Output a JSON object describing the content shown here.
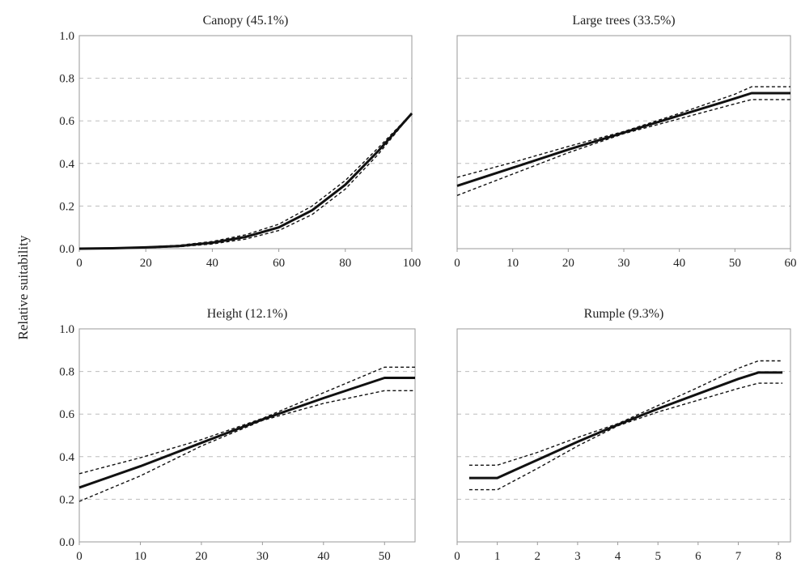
{
  "figure": {
    "ylabel": "Relative suitability"
  },
  "chart_data": [
    {
      "type": "line",
      "title": "Canopy (45.1%)",
      "xlim": [
        0,
        100
      ],
      "ylim": [
        0,
        1.0
      ],
      "xticks": [
        "0",
        "20",
        "40",
        "60",
        "80",
        "100"
      ],
      "yticks": [
        "0.0",
        "0.2",
        "0.4",
        "0.6",
        "0.8",
        "1.0"
      ],
      "grid": "horizontal-dashed",
      "series": [
        {
          "role": "mean",
          "style": "solid",
          "x": [
            0,
            10,
            20,
            30,
            40,
            50,
            60,
            70,
            80,
            90,
            100
          ],
          "y": [
            0.0,
            0.002,
            0.006,
            0.012,
            0.028,
            0.055,
            0.1,
            0.18,
            0.3,
            0.46,
            0.635
          ]
        },
        {
          "role": "upper",
          "style": "dashed",
          "x": [
            0,
            10,
            20,
            30,
            40,
            50,
            60,
            70,
            80,
            90,
            100
          ],
          "y": [
            0.0,
            0.003,
            0.008,
            0.016,
            0.034,
            0.065,
            0.115,
            0.2,
            0.32,
            0.475,
            0.635
          ]
        },
        {
          "role": "lower",
          "style": "dashed",
          "x": [
            0,
            10,
            20,
            30,
            40,
            50,
            60,
            70,
            80,
            90,
            100
          ],
          "y": [
            0.0,
            0.001,
            0.004,
            0.009,
            0.022,
            0.045,
            0.085,
            0.16,
            0.28,
            0.445,
            0.635
          ]
        }
      ]
    },
    {
      "type": "line",
      "title": "Large trees (33.5%)",
      "xlim": [
        0,
        60
      ],
      "ylim": [
        0,
        1.0
      ],
      "xticks": [
        "0",
        "10",
        "20",
        "30",
        "40",
        "50",
        "60"
      ],
      "yticks": [
        "0.0",
        "0.2",
        "0.4",
        "0.6",
        "0.8",
        "1.0"
      ],
      "grid": "horizontal-dashed",
      "series": [
        {
          "role": "mean",
          "style": "solid",
          "x": [
            0,
            10,
            20,
            30,
            40,
            50,
            53,
            60
          ],
          "y": [
            0.295,
            0.38,
            0.465,
            0.545,
            0.625,
            0.705,
            0.73,
            0.73
          ]
        },
        {
          "role": "upper",
          "style": "dashed",
          "x": [
            0,
            10,
            20,
            30,
            40,
            50,
            53,
            60
          ],
          "y": [
            0.335,
            0.405,
            0.48,
            0.55,
            0.635,
            0.725,
            0.76,
            0.76
          ]
        },
        {
          "role": "lower",
          "style": "dashed",
          "x": [
            0,
            10,
            20,
            30,
            40,
            50,
            53,
            60
          ],
          "y": [
            0.25,
            0.35,
            0.45,
            0.54,
            0.61,
            0.68,
            0.7,
            0.7
          ]
        }
      ]
    },
    {
      "type": "line",
      "title": "Height (12.1%)",
      "xlim": [
        0,
        55
      ],
      "ylim": [
        0,
        1.0
      ],
      "xticks": [
        "0",
        "10",
        "20",
        "30",
        "40",
        "50"
      ],
      "yticks": [
        "0.0",
        "0.2",
        "0.4",
        "0.6",
        "0.8",
        "1.0"
      ],
      "grid": "horizontal-dashed",
      "series": [
        {
          "role": "mean",
          "style": "solid",
          "x": [
            0,
            10,
            20,
            30,
            40,
            50,
            55
          ],
          "y": [
            0.255,
            0.355,
            0.465,
            0.575,
            0.675,
            0.77,
            0.77
          ]
        },
        {
          "role": "upper",
          "style": "dashed",
          "x": [
            0,
            10,
            20,
            30,
            40,
            50,
            55
          ],
          "y": [
            0.32,
            0.395,
            0.48,
            0.58,
            0.7,
            0.82,
            0.82
          ]
        },
        {
          "role": "lower",
          "style": "dashed",
          "x": [
            0,
            10,
            20,
            30,
            40,
            50,
            55
          ],
          "y": [
            0.19,
            0.31,
            0.45,
            0.57,
            0.65,
            0.71,
            0.71
          ]
        }
      ]
    },
    {
      "type": "line",
      "title": "Rumple (9.3%)",
      "xlim": [
        0,
        8.3
      ],
      "ylim": [
        0,
        1.0
      ],
      "xticks": [
        "0",
        "1",
        "2",
        "3",
        "4",
        "5",
        "6",
        "7",
        "8"
      ],
      "yticks": [
        "0.0",
        "0.2",
        "0.4",
        "0.6",
        "0.8",
        "1.0"
      ],
      "grid": "horizontal-dashed",
      "series": [
        {
          "role": "mean",
          "style": "solid",
          "x": [
            0.3,
            1,
            2,
            3,
            4,
            5,
            6,
            7,
            7.5,
            8.1
          ],
          "y": [
            0.3,
            0.3,
            0.385,
            0.47,
            0.55,
            0.625,
            0.695,
            0.765,
            0.795,
            0.795
          ]
        },
        {
          "role": "upper",
          "style": "dashed",
          "x": [
            0.3,
            1,
            2,
            3,
            4,
            5,
            6,
            7,
            7.5,
            8.1
          ],
          "y": [
            0.36,
            0.36,
            0.42,
            0.49,
            0.555,
            0.64,
            0.725,
            0.815,
            0.85,
            0.85
          ]
        },
        {
          "role": "lower",
          "style": "dashed",
          "x": [
            0.3,
            1,
            2,
            3,
            4,
            5,
            6,
            7,
            7.5,
            8.1
          ],
          "y": [
            0.245,
            0.245,
            0.345,
            0.45,
            0.545,
            0.61,
            0.665,
            0.72,
            0.745,
            0.745
          ]
        }
      ]
    }
  ]
}
